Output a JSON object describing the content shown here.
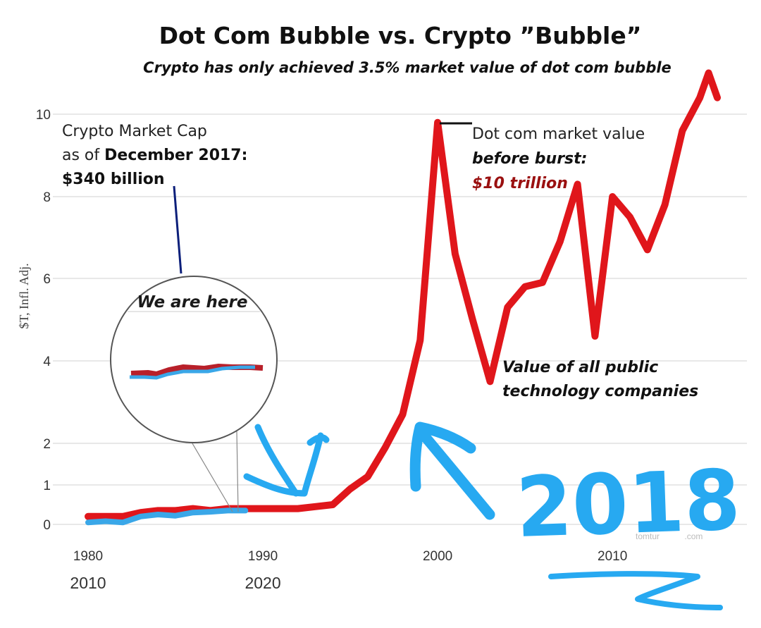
{
  "chart_data": {
    "type": "line",
    "title": "Dot Com Bubble vs. Crypto ”Bubble”",
    "subtitle": "Crypto has only achieved 3.5% market value of dot com bubble",
    "ylabel": "$T, Infl. Adj.",
    "ylim": [
      0,
      10.5
    ],
    "y_ticks": [
      "0",
      "1",
      "2",
      "4",
      "6",
      "8",
      "10"
    ],
    "x_ticks_primary": [
      "1980",
      "1990",
      "2000",
      "2010"
    ],
    "x_ticks_secondary": [
      "2010",
      "2020"
    ],
    "xlim": [
      1980,
      2016
    ],
    "grid": true,
    "series": [
      {
        "name": "Value of all public technology companies",
        "color": "#e0161b",
        "x": [
          1980,
          1981,
          1982,
          1983,
          1984,
          1985,
          1986,
          1987,
          1988,
          1989,
          1990,
          1991,
          1992,
          1993,
          1994,
          1995,
          1996,
          1997,
          1998,
          1999,
          2000,
          2001,
          2002,
          2003,
          2004,
          2005,
          2006,
          2007,
          2008,
          2009,
          2010,
          2011,
          2012,
          2013,
          2014,
          2015,
          2015.5,
          2016
        ],
        "values": [
          0.2,
          0.2,
          0.2,
          0.3,
          0.35,
          0.35,
          0.4,
          0.35,
          0.4,
          0.4,
          0.4,
          0.4,
          0.4,
          0.45,
          0.5,
          0.9,
          1.2,
          1.9,
          2.7,
          4.5,
          9.8,
          6.6,
          5.0,
          3.5,
          5.3,
          5.8,
          5.9,
          6.9,
          8.3,
          4.6,
          8.0,
          7.5,
          6.7,
          7.8,
          9.6,
          10.4,
          11.0,
          10.4
        ]
      },
      {
        "name": "Crypto",
        "color": "#3aa7e8",
        "x": [
          1980,
          1981,
          1982,
          1983,
          1984,
          1985,
          1986,
          1987,
          1988,
          1989
        ],
        "values": [
          0.05,
          0.08,
          0.05,
          0.2,
          0.25,
          0.22,
          0.3,
          0.32,
          0.35,
          0.35
        ]
      }
    ],
    "annotations": {
      "crypto_label_1": "Crypto Market Cap",
      "crypto_label_2": "as of ",
      "crypto_label_2b": "December 2017:",
      "crypto_label_3": "$340 billion",
      "zoom_label": "We are here",
      "peak_label_1": "Dot com market value",
      "peak_label_2": "before burst:",
      "peak_label_3": "$10 trillion",
      "series_label_1": "Value of all public",
      "series_label_2": "technology companies",
      "watermark": "tomtur",
      "watermark_end": ".com"
    },
    "handwritten_overlay": {
      "year": "2018",
      "color": "#27a9f1"
    }
  }
}
